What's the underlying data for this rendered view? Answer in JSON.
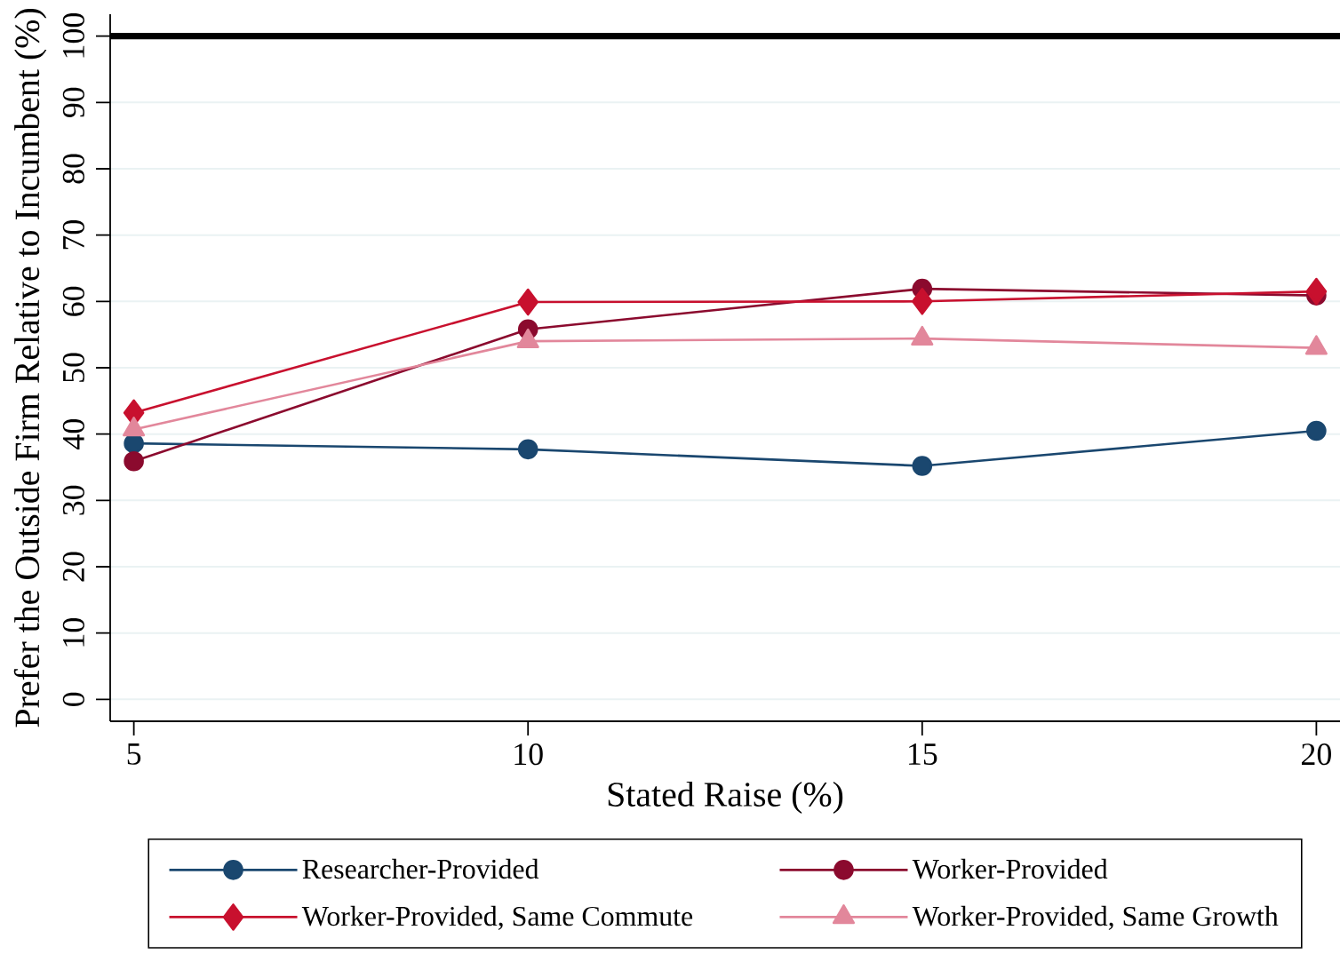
{
  "chart_data": {
    "type": "line",
    "xlabel": "Stated Raise (%)",
    "ylabel": "Prefer the Outside Firm Relative to Incumbent (%)",
    "x": [
      5,
      10,
      15,
      20
    ],
    "series": [
      {
        "name": "Researcher-Provided",
        "color": "#1a476f",
        "marker": "circle",
        "values": [
          38.6,
          37.7,
          35.2,
          40.5
        ]
      },
      {
        "name": "Worker-Provided",
        "color": "#8b0a2e",
        "marker": "circle",
        "values": [
          35.9,
          55.8,
          61.9,
          60.9
        ]
      },
      {
        "name": "Worker-Provided, Same Commute",
        "color": "#c8102e",
        "marker": "diamond",
        "values": [
          43.2,
          59.9,
          60.0,
          61.5
        ]
      },
      {
        "name": "Worker-Provided, Same Growth",
        "color": "#e2879b",
        "marker": "triangle",
        "values": [
          40.7,
          54.0,
          54.4,
          53.0
        ]
      }
    ],
    "xlim": [
      4.7,
      20.3
    ],
    "ylim": [
      -3.3,
      103.3
    ],
    "xticks": [
      5,
      10,
      15,
      20
    ],
    "yticks": [
      0,
      10,
      20,
      30,
      40,
      50,
      60,
      70,
      80,
      90,
      100
    ],
    "grid": "y",
    "legend": "bottom",
    "ref_lines": [
      {
        "axis": "y",
        "value": 100,
        "color": "#000000"
      }
    ]
  }
}
